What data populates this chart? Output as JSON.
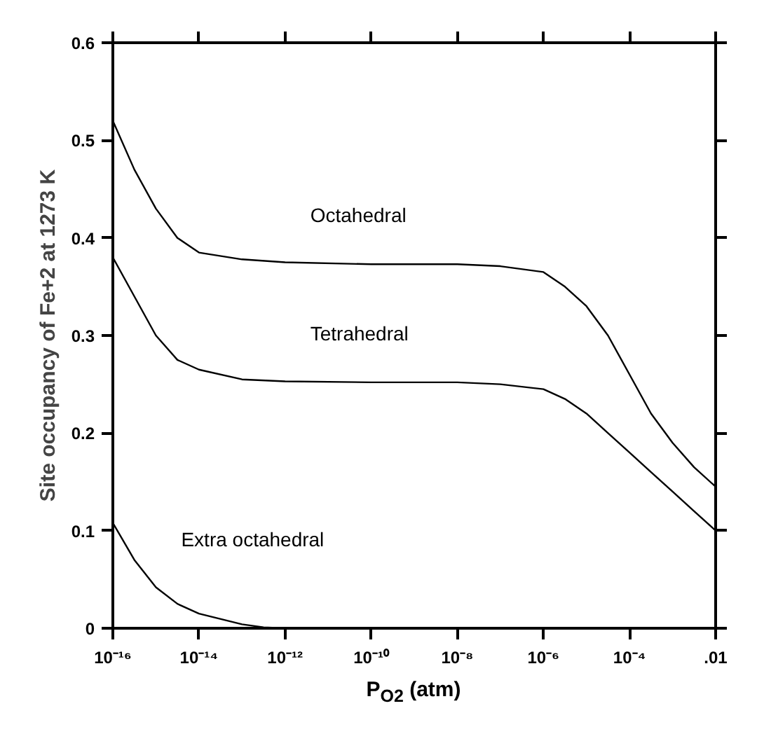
{
  "chart_data": {
    "type": "line",
    "xlabel": "P$_{O2}$ (atm)",
    "ylabel": "Site occupancy of Fe+2 at 1273 K",
    "log": "x",
    "xlim": [
      1e-16,
      0.01
    ],
    "ylim": [
      0,
      0.6
    ],
    "xticks": [
      {
        "value": 1e-16,
        "label": "10⁻¹⁶"
      },
      {
        "value": 1e-14,
        "label": "10⁻¹⁴"
      },
      {
        "value": 1e-12,
        "label": "10⁻¹²"
      },
      {
        "value": 1e-10,
        "label": "10⁻¹⁰"
      },
      {
        "value": 1e-08,
        "label": "10⁻⁸"
      },
      {
        "value": 1e-06,
        "label": "10⁻⁶"
      },
      {
        "value": 0.0001,
        "label": "10⁻⁴"
      },
      {
        "value": 0.01,
        "label": ".01"
      }
    ],
    "yticks": [
      0,
      0.1,
      0.2,
      0.3,
      0.4,
      0.5,
      0.6
    ],
    "grid": false,
    "marker": "none",
    "line_style": "solid",
    "series": [
      {
        "name": "Octahedral",
        "color": "#000000",
        "x": [
          1e-16,
          3.16e-16,
          1e-15,
          3.16e-15,
          1e-14,
          1e-13,
          1e-12,
          1e-10,
          1e-08,
          1e-07,
          1e-06,
          3.16e-06,
          1e-05,
          3.16e-05,
          0.0001,
          0.000316,
          0.001,
          0.00316,
          0.01
        ],
        "values": [
          0.52,
          0.47,
          0.43,
          0.4,
          0.385,
          0.378,
          0.375,
          0.373,
          0.373,
          0.371,
          0.365,
          0.35,
          0.33,
          0.3,
          0.26,
          0.22,
          0.19,
          0.165,
          0.145
        ]
      },
      {
        "name": "Tetrahedral",
        "color": "#000000",
        "x": [
          1e-16,
          3.16e-16,
          1e-15,
          3.16e-15,
          1e-14,
          1e-13,
          1e-12,
          1e-10,
          1e-08,
          1e-07,
          1e-06,
          3.16e-06,
          1e-05,
          3.16e-05,
          0.0001,
          0.000316,
          0.001,
          0.00316,
          0.01
        ],
        "values": [
          0.38,
          0.34,
          0.3,
          0.275,
          0.265,
          0.255,
          0.253,
          0.252,
          0.252,
          0.25,
          0.245,
          0.235,
          0.22,
          0.2,
          0.18,
          0.16,
          0.14,
          0.12,
          0.1
        ]
      },
      {
        "name": "Extra octahedral",
        "color": "#000000",
        "x": [
          1e-16,
          3.16e-16,
          1e-15,
          3.16e-15,
          1e-14,
          1e-13,
          3.16e-13,
          1e-12
        ],
        "values": [
          0.108,
          0.07,
          0.042,
          0.025,
          0.015,
          0.004,
          0.001,
          0
        ]
      }
    ]
  }
}
